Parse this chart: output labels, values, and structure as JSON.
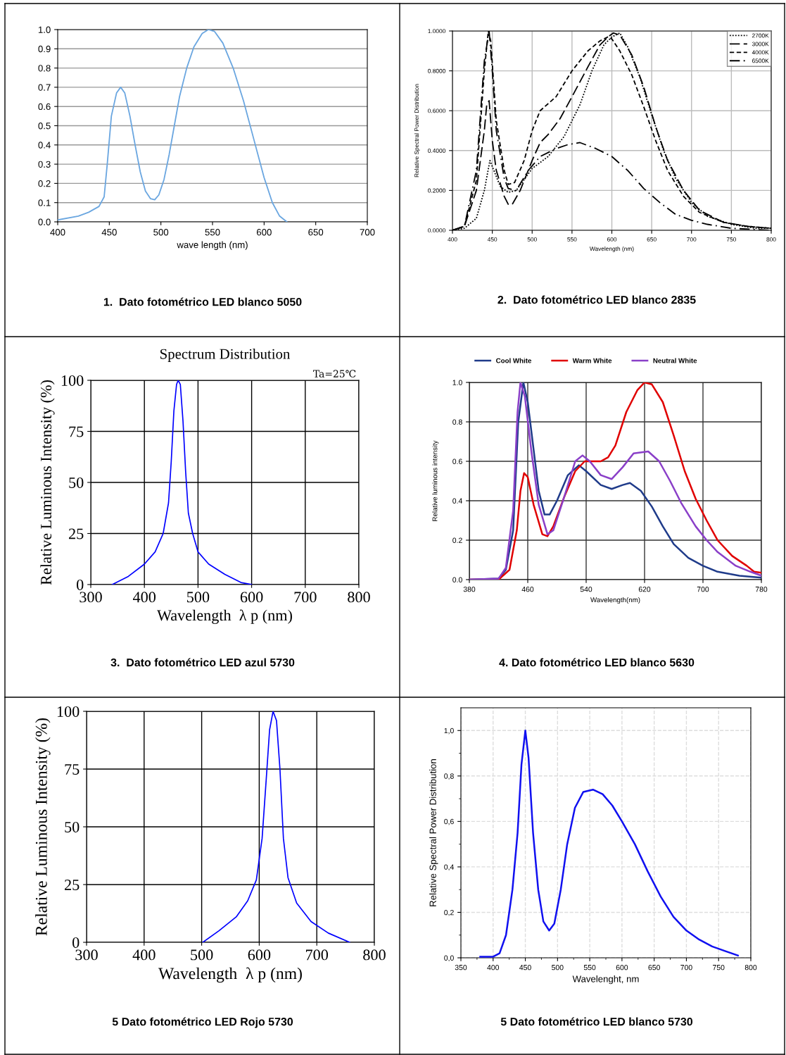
{
  "chart_data": [
    {
      "type": "line",
      "xlabel": "wave length (nm)",
      "xlim": [
        400,
        700
      ],
      "ylim": [
        0,
        1.0
      ],
      "xticks": [
        400,
        450,
        500,
        550,
        600,
        650,
        700
      ],
      "yticks": [
        {
          "value": 0,
          "label": "0.0"
        },
        0.1,
        0.2,
        0.3,
        0.4,
        0.5,
        0.6,
        0.7,
        0.8,
        0.9,
        {
          "value": 1,
          "label": "1.0"
        }
      ],
      "grid": "y",
      "annotations": [
        "1.  Dato fotométrico LED blanco 5050"
      ],
      "series": [
        {
          "color": "#6aa6e0",
          "x": [
            400,
            420,
            430,
            440,
            445,
            448,
            452,
            457,
            461,
            465,
            470,
            475,
            480,
            485,
            490,
            494,
            498,
            503,
            508,
            513,
            518,
            525,
            532,
            540,
            546,
            552,
            560,
            570,
            580,
            590,
            600,
            608,
            615,
            622
          ],
          "values": [
            0.01,
            0.03,
            0.05,
            0.08,
            0.13,
            0.3,
            0.55,
            0.67,
            0.7,
            0.67,
            0.55,
            0.4,
            0.26,
            0.16,
            0.12,
            0.115,
            0.14,
            0.22,
            0.35,
            0.5,
            0.65,
            0.8,
            0.91,
            0.98,
            1.0,
            0.99,
            0.93,
            0.8,
            0.63,
            0.43,
            0.23,
            0.1,
            0.03,
            0.0
          ]
        }
      ]
    },
    {
      "type": "line",
      "xlabel": "Wavelength (nm)",
      "ylabel": "Relative Spectral Power Distribution",
      "xlim": [
        400,
        800
      ],
      "ylim": [
        0,
        1.0
      ],
      "xticks": [
        400,
        450,
        500,
        550,
        600,
        650,
        700,
        750,
        800
      ],
      "yticks": [
        {
          "value": 0,
          "label": "0.0000"
        },
        {
          "value": 0.2,
          "label": "0.2000"
        },
        {
          "value": 0.4,
          "label": "0.4000"
        },
        {
          "value": 0.6,
          "label": "0.6000"
        },
        {
          "value": 0.8,
          "label": "0.8000"
        },
        {
          "value": 1.0,
          "label": "1.0000"
        }
      ],
      "grid": true,
      "legend": "top right",
      "annotations": [
        "2.  Dato fotométrico LED blanco 2835"
      ],
      "series": [
        {
          "name": "2700K",
          "color": "#000000",
          "line_style": "dotted",
          "x": [
            400,
            415,
            430,
            440,
            447,
            452,
            460,
            470,
            480,
            500,
            520,
            540,
            560,
            575,
            590,
            600,
            610,
            620,
            635,
            650,
            665,
            680,
            700,
            720,
            750,
            780,
            800
          ],
          "values": [
            0,
            0.01,
            0.06,
            0.2,
            0.35,
            0.3,
            0.22,
            0.19,
            0.2,
            0.31,
            0.37,
            0.47,
            0.63,
            0.8,
            0.93,
            0.97,
            0.99,
            0.92,
            0.77,
            0.58,
            0.4,
            0.26,
            0.14,
            0.07,
            0.03,
            0.01,
            0.01
          ]
        },
        {
          "name": "3000K",
          "color": "#000000",
          "line_style": "long dashed",
          "x": [
            400,
            415,
            430,
            440,
            443,
            446,
            450,
            455,
            465,
            470,
            475,
            485,
            500,
            510,
            520,
            535,
            550,
            570,
            585,
            595,
            602,
            610,
            625,
            640,
            655,
            670,
            690,
            710,
            740,
            770,
            800
          ],
          "values": [
            0,
            0.02,
            0.2,
            0.5,
            0.63,
            0.65,
            0.45,
            0.3,
            0.17,
            0.13,
            0.13,
            0.2,
            0.35,
            0.44,
            0.48,
            0.56,
            0.67,
            0.82,
            0.93,
            0.97,
            0.99,
            0.98,
            0.88,
            0.72,
            0.52,
            0.35,
            0.2,
            0.1,
            0.04,
            0.02,
            0.01
          ]
        },
        {
          "name": "4000K",
          "color": "#000000",
          "line_style": "dashed",
          "x": [
            400,
            415,
            430,
            440,
            445,
            448,
            455,
            465,
            470,
            478,
            490,
            500,
            510,
            530,
            550,
            570,
            585,
            595,
            600,
            610,
            625,
            640,
            655,
            670,
            690,
            710,
            740,
            770,
            800
          ],
          "values": [
            0,
            0.02,
            0.25,
            0.8,
            1.0,
            0.95,
            0.55,
            0.3,
            0.23,
            0.24,
            0.35,
            0.5,
            0.6,
            0.67,
            0.8,
            0.9,
            0.95,
            0.97,
            0.96,
            0.9,
            0.78,
            0.62,
            0.45,
            0.3,
            0.17,
            0.09,
            0.04,
            0.02,
            0.01
          ]
        },
        {
          "name": "6500K",
          "color": "#000000",
          "line_style": "dashdot",
          "x": [
            400,
            415,
            430,
            440,
            446,
            450,
            455,
            465,
            470,
            480,
            495,
            510,
            530,
            545,
            560,
            580,
            600,
            620,
            640,
            660,
            680,
            700,
            720,
            750,
            800
          ],
          "values": [
            0,
            0.02,
            0.3,
            0.85,
            1.0,
            0.8,
            0.5,
            0.26,
            0.21,
            0.2,
            0.3,
            0.37,
            0.41,
            0.43,
            0.44,
            0.41,
            0.37,
            0.3,
            0.21,
            0.14,
            0.08,
            0.05,
            0.03,
            0.01,
            0.0
          ]
        }
      ]
    },
    {
      "type": "line",
      "title": "Spectrum Distribution",
      "subtitle": "Ta=25℃",
      "xlabel": "Wavelength  λ p (nm)",
      "ylabel": "Relative Luminous Intensity (%)",
      "xlim": [
        300,
        800
      ],
      "ylim": [
        0,
        100
      ],
      "xticks": [
        300,
        400,
        500,
        600,
        700,
        800
      ],
      "yticks": [
        0,
        25,
        50,
        75,
        100
      ],
      "grid": true,
      "annotations": [
        "3.  Dato fotométrico LED azul 5730"
      ],
      "series": [
        {
          "color": "#0000ff",
          "x": [
            340,
            370,
            400,
            420,
            435,
            445,
            450,
            455,
            460,
            463,
            467,
            472,
            477,
            482,
            490,
            500,
            520,
            550,
            580,
            600
          ],
          "values": [
            0,
            4,
            10,
            16,
            25,
            40,
            60,
            85,
            98,
            100,
            98,
            80,
            55,
            35,
            25,
            16,
            10,
            5,
            1,
            0
          ]
        }
      ]
    },
    {
      "type": "line",
      "xlabel": "Wavelength(nm)",
      "ylabel": "Relative luminous intensity",
      "xlim": [
        380,
        780
      ],
      "ylim": [
        0,
        1.0
      ],
      "xticks": [
        380,
        460,
        540,
        620,
        700,
        780
      ],
      "yticks": [
        {
          "value": 0,
          "label": "0.0"
        },
        0.2,
        0.4,
        0.6,
        0.8,
        {
          "value": 1,
          "label": "1.0"
        }
      ],
      "grid": true,
      "legend": "top",
      "annotations": [
        "4. Dato fotométrico LED blanco 5630"
      ],
      "series": [
        {
          "name": "Cool White",
          "color": "#1f3b8a",
          "x": [
            380,
            420,
            430,
            440,
            447,
            454,
            460,
            465,
            475,
            483,
            490,
            500,
            515,
            530,
            540,
            560,
            575,
            590,
            600,
            615,
            630,
            645,
            660,
            680,
            700,
            720,
            750,
            780
          ],
          "values": [
            0,
            0.005,
            0.05,
            0.25,
            0.8,
            1.0,
            0.9,
            0.75,
            0.45,
            0.33,
            0.33,
            0.4,
            0.53,
            0.58,
            0.55,
            0.48,
            0.46,
            0.48,
            0.49,
            0.45,
            0.37,
            0.27,
            0.18,
            0.11,
            0.07,
            0.04,
            0.02,
            0.01
          ]
        },
        {
          "name": "Warm White",
          "color": "#e00000",
          "x": [
            380,
            420,
            435,
            445,
            450,
            455,
            460,
            468,
            480,
            487,
            495,
            510,
            525,
            538,
            560,
            570,
            580,
            595,
            610,
            620,
            630,
            645,
            660,
            675,
            690,
            705,
            720,
            740,
            760,
            770,
            780
          ],
          "values": [
            0,
            0,
            0.05,
            0.25,
            0.45,
            0.54,
            0.52,
            0.38,
            0.23,
            0.22,
            0.27,
            0.42,
            0.55,
            0.6,
            0.6,
            0.62,
            0.68,
            0.85,
            0.96,
            1.0,
            0.99,
            0.9,
            0.73,
            0.55,
            0.41,
            0.3,
            0.2,
            0.12,
            0.07,
            0.04,
            0.035
          ]
        },
        {
          "name": "Neutral White",
          "color": "#8a3fc8",
          "x": [
            380,
            420,
            430,
            440,
            446,
            450,
            456,
            465,
            475,
            487,
            495,
            510,
            525,
            535,
            545,
            560,
            575,
            590,
            605,
            625,
            640,
            655,
            670,
            690,
            705,
            720,
            745,
            765,
            780
          ],
          "values": [
            0,
            0.005,
            0.06,
            0.35,
            0.85,
            1.0,
            0.93,
            0.65,
            0.38,
            0.23,
            0.25,
            0.42,
            0.6,
            0.63,
            0.6,
            0.53,
            0.51,
            0.57,
            0.64,
            0.65,
            0.6,
            0.5,
            0.39,
            0.27,
            0.2,
            0.14,
            0.07,
            0.04,
            0.02
          ]
        }
      ]
    },
    {
      "type": "line",
      "xlabel": "Wavelength  λ p (nm)",
      "ylabel": "Relative Luminous Intensity (%)",
      "xlim": [
        300,
        800
      ],
      "ylim": [
        0,
        100
      ],
      "xticks": [
        300,
        400,
        500,
        600,
        700,
        800
      ],
      "yticks": [
        0,
        25,
        50,
        75,
        100
      ],
      "grid": true,
      "annotations": [
        "5 Dato fotométrico LED Rojo 5730"
      ],
      "series": [
        {
          "color": "#0000ff",
          "x": [
            502,
            530,
            560,
            580,
            595,
            605,
            612,
            618,
            624,
            630,
            636,
            642,
            650,
            665,
            690,
            720,
            757
          ],
          "values": [
            0,
            5,
            11,
            18,
            27,
            45,
            70,
            92,
            100,
            96,
            75,
            45,
            28,
            17,
            9,
            4,
            0
          ]
        }
      ]
    },
    {
      "type": "line",
      "xlabel": "Wavelenght, nm",
      "ylabel": "Relative Spectral Power Distribution",
      "xlim": [
        350,
        800
      ],
      "ylim": [
        0,
        1.1
      ],
      "xticks": [
        350,
        {
          "value": 375,
          "label": null
        },
        400,
        {
          "value": 425,
          "label": null
        },
        450,
        {
          "value": 475,
          "label": null
        },
        500,
        {
          "value": 525,
          "label": null
        },
        550,
        {
          "value": 575,
          "label": null
        },
        600,
        {
          "value": 625,
          "label": null
        },
        650,
        {
          "value": 675,
          "label": null
        },
        700,
        {
          "value": 725,
          "label": null
        },
        750,
        {
          "value": 775,
          "label": null
        },
        800
      ],
      "yticks": [
        {
          "value": 0,
          "label": "0,0"
        },
        {
          "value": 0.1,
          "label": null
        },
        {
          "value": 0.2,
          "label": "0,2"
        },
        {
          "value": 0.3,
          "label": null
        },
        {
          "value": 0.4,
          "label": "0,4"
        },
        {
          "value": 0.5,
          "label": null
        },
        {
          "value": 0.6,
          "label": "0,6"
        },
        {
          "value": 0.7,
          "label": null
        },
        {
          "value": 0.8,
          "label": "0,8"
        },
        {
          "value": 0.9,
          "label": null
        },
        {
          "value": 1.0,
          "label": "1,0"
        }
      ],
      "grid": true,
      "line_style": "solid",
      "annotations": [
        "5 Dato fotométrico LED blanco 5730"
      ],
      "series": [
        {
          "color": "#1010f0",
          "x": [
            380,
            400,
            410,
            420,
            430,
            438,
            444,
            450,
            455,
            462,
            470,
            478,
            487,
            495,
            505,
            515,
            527,
            540,
            555,
            570,
            585,
            600,
            620,
            640,
            660,
            680,
            700,
            720,
            740,
            760,
            780
          ],
          "values": [
            0.005,
            0.005,
            0.02,
            0.1,
            0.3,
            0.55,
            0.85,
            1.0,
            0.88,
            0.55,
            0.3,
            0.16,
            0.12,
            0.15,
            0.3,
            0.5,
            0.66,
            0.73,
            0.74,
            0.72,
            0.67,
            0.6,
            0.5,
            0.38,
            0.27,
            0.18,
            0.12,
            0.08,
            0.05,
            0.03,
            0.01
          ]
        }
      ]
    }
  ]
}
